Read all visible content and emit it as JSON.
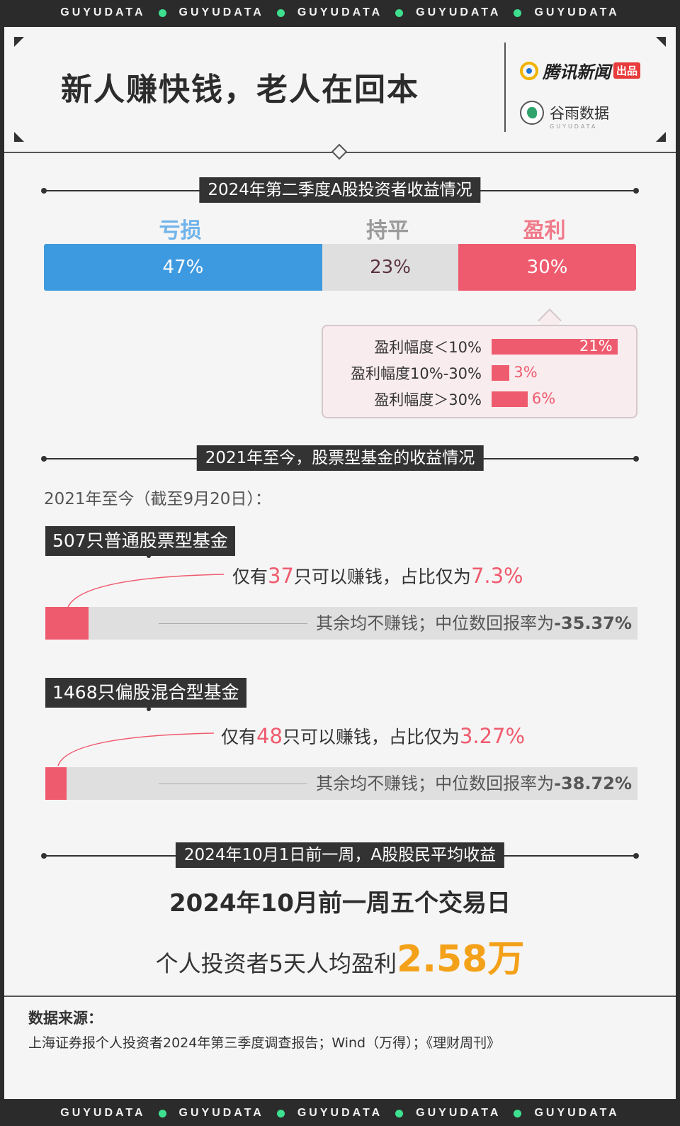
{
  "strip": {
    "text": "GUYUDATA"
  },
  "header": {
    "title": "新人赚快钱，老人在回本",
    "logo1": "腾讯新闻",
    "logo1_tag": "出品",
    "logo2": "谷雨数据",
    "logo2_sub": "GUYUDATA"
  },
  "section1": {
    "title": "2024年第二季度A股投资者收益情况"
  },
  "section2": {
    "title": "2021年至今，股票型基金的收益情况",
    "subtitle": "2021年至今（截至9月20日）："
  },
  "section3": {
    "title": "2024年10月1日前一周，A股股民平均收益"
  },
  "fund1": {
    "label": "507只普通股票型基金",
    "desc_pre": "仅有",
    "count": "37",
    "desc_mid": "只可以赚钱，占比仅为",
    "pct": "7.3%",
    "fraction": 0.073,
    "rest": "其余均不赚钱；中位数回报率为",
    "median": "-35.37%"
  },
  "fund2": {
    "label": "1468只偏股混合型基金",
    "desc_pre": "仅有",
    "count": "48",
    "desc_mid": "只可以赚钱，占比仅为",
    "pct": "3.27%",
    "fraction": 0.0327,
    "rest": "其余均不赚钱；中位数回报率为",
    "median": "-38.72%"
  },
  "summary": {
    "line1": "2024年10月前一周五个交易日",
    "line2_pre": "个人投资者5天人均盈利",
    "line2_num": "2.58万"
  },
  "source": {
    "title": "数据来源：",
    "text": "上海证券报个人投资者2024年第三季度调查报告；Wind（万得）；《理财周刊》"
  },
  "colors": {
    "loss": "#3e9ae0",
    "flat": "#e0dfdf",
    "profit": "#ef5b6e",
    "highlight": "#f4a11a"
  },
  "chart_data": [
    {
      "type": "bar",
      "title": "2024年第二季度A股投资者收益情况",
      "categories": [
        "亏损",
        "持平",
        "盈利"
      ],
      "values": [
        47,
        23,
        30
      ],
      "labels": [
        "47%",
        "23%",
        "30%"
      ]
    },
    {
      "type": "bar",
      "categories": [
        "盈利幅度＜10%",
        "盈利幅度10%-30%",
        "盈利幅度＞30%"
      ],
      "values": [
        21,
        3,
        6
      ],
      "labels": [
        "21%",
        "3%",
        "6%"
      ]
    }
  ]
}
